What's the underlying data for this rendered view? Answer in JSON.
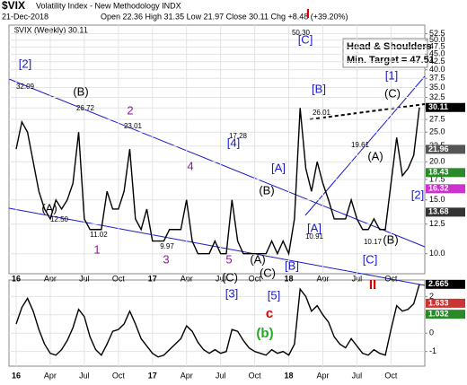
{
  "header": {
    "symbol": "$VIX",
    "title": "Volatility Index - New Methodology INDX",
    "date": "21-Dec-2018",
    "quote": "Open 22.36 High 31.35 Low 21.97 Close 30.11 Chg +8.48 (+39.20%)"
  },
  "chart_data": [
    {
      "type": "line",
      "legend": "$VIX (Weekly) 30.11",
      "log_scale": true,
      "grid": true,
      "categories": [
        "16",
        null,
        null,
        null,
        null,
        null,
        "Apr",
        null,
        null,
        null,
        null,
        null,
        "Jul",
        null,
        null,
        null,
        null,
        null,
        "Oct",
        null,
        null,
        null,
        null,
        null,
        "17",
        null,
        null,
        null,
        null,
        null,
        "Apr",
        null,
        null,
        null,
        null,
        null,
        "Jul",
        null,
        null,
        null,
        null,
        null,
        "Oct",
        null,
        null,
        null,
        null,
        null,
        "18",
        null,
        null,
        null,
        null,
        null,
        "Apr",
        null,
        null,
        null,
        null,
        null,
        "Jul",
        null,
        null,
        null,
        null,
        null,
        "Oct",
        null,
        null,
        null,
        null,
        null
      ],
      "series": [
        {
          "name": "$VIX",
          "color": "#000000",
          "values": [
            22,
            27,
            25,
            20,
            16,
            14,
            13,
            15,
            14,
            15,
            17,
            25,
            13,
            12,
            12,
            12,
            16,
            14,
            14,
            16,
            22,
            13,
            12,
            14,
            11,
            11,
            11,
            12,
            12,
            12,
            15,
            11,
            10,
            10,
            10,
            11,
            10,
            10,
            15,
            11,
            10,
            10,
            10,
            10,
            10,
            11,
            10,
            11,
            10,
            13,
            30,
            19,
            16,
            20,
            17,
            15,
            13,
            13,
            13,
            15,
            13,
            12,
            12,
            13,
            12,
            12,
            17,
            24,
            18,
            19,
            21,
            30.11
          ]
        }
      ],
      "ylim": [
        8.6,
        56
      ],
      "yticks": [
        {
          "value": 10,
          "label": "10.0"
        },
        {
          "value": 12.5,
          "label": "12.5"
        },
        {
          "value": 15,
          "label": "15.0"
        },
        {
          "value": 17.5,
          "label": "17.5"
        },
        {
          "value": 20,
          "label": "20.0"
        },
        {
          "value": 22.5,
          "label": "22.5"
        },
        {
          "value": 25,
          "label": "25.0"
        },
        {
          "value": 27.5,
          "label": "27.5"
        },
        {
          "value": 30,
          "label": "30.0"
        },
        {
          "value": 32.5,
          "label": "32.5"
        },
        {
          "value": 35,
          "label": "35.0"
        },
        {
          "value": 37.5,
          "label": "37.5"
        },
        {
          "value": 40,
          "label": "40.0"
        },
        {
          "value": 42.5,
          "label": "42.5"
        },
        {
          "value": 45,
          "label": "45.0"
        },
        {
          "value": 47.5,
          "label": "47.5"
        },
        {
          "value": 50,
          "label": "50.0"
        },
        {
          "value": 52.5,
          "label": "52.5"
        }
      ],
      "price_tags": [
        {
          "value": 30.11,
          "color": "#000000"
        },
        {
          "value": 21.96,
          "color": "#555555"
        },
        {
          "value": 18.43,
          "color": "#2a8a2a"
        },
        {
          "value": 16.32,
          "color": "#cc33cc"
        },
        {
          "value": 13.68,
          "color": "#333333"
        }
      ],
      "pattern_box": [
        "Head & Shoulders",
        "Min. Target = 47.51"
      ],
      "peak_labels": [
        "32.09",
        "26.72",
        "23.01",
        "12.50",
        "11.02",
        "9.97",
        "17.28",
        "50.30",
        "26.01",
        "19.61",
        "10.91",
        "10.17"
      ],
      "annotations": [
        {
          "text": "[2]",
          "color": "#1a1acc"
        },
        {
          "text": "(B)",
          "color": "#000000"
        },
        {
          "text": "2",
          "color": "#8a1a9a"
        },
        {
          "text": "(A)",
          "color": "#000000"
        },
        {
          "text": "1",
          "color": "#8a1a9a"
        },
        {
          "text": "3",
          "color": "#8a1a9a"
        },
        {
          "text": "4",
          "color": "#8a1a9a"
        },
        {
          "text": "[4]",
          "color": "#1a1acc"
        },
        {
          "text": "5",
          "color": "#8a1a9a"
        },
        {
          "text": "(B)",
          "color": "#000000"
        },
        {
          "text": "(A)",
          "color": "#000000"
        },
        {
          "text": "(C)",
          "color": "#000000"
        },
        {
          "text": "(C)",
          "color": "#000000"
        },
        {
          "text": "[3]",
          "color": "#1a1acc"
        },
        {
          "text": "[5]",
          "color": "#1a1acc"
        },
        {
          "text": "[B]",
          "color": "#1a1acc"
        },
        {
          "text": "[A]",
          "color": "#1a1acc"
        },
        {
          "text": "[A]",
          "color": "#1a1acc"
        },
        {
          "text": "[C]",
          "color": "#1a1acc"
        },
        {
          "text": "I",
          "color": "#dd0000"
        },
        {
          "text": "[B]",
          "color": "#1a1acc"
        },
        {
          "text": "[1]",
          "color": "#1a1acc"
        },
        {
          "text": "(C)",
          "color": "#000000"
        },
        {
          "text": "(A)",
          "color": "#000000"
        },
        {
          "text": "[2]",
          "color": "#1a1acc"
        },
        {
          "text": "(B)",
          "color": "#000000"
        },
        {
          "text": "[C]",
          "color": "#1a1acc"
        },
        {
          "text": "II",
          "color": "#dd0000"
        },
        {
          "text": "c",
          "color": "#dd0000"
        },
        {
          "text": "(b)",
          "color": "#22aa22"
        }
      ]
    },
    {
      "type": "line",
      "grid": true,
      "series": [
        {
          "name": "momentum",
          "color": "#000000",
          "values": [
            0.5,
            1.4,
            1.9,
            1.2,
            0.2,
            -0.6,
            -1.1,
            -1.2,
            -0.9,
            -0.4,
            0.3,
            1.3,
            0.9,
            -0.2,
            -0.9,
            -1.2,
            -0.6,
            0.1,
            0.2,
            0.5,
            1.2,
            0.5,
            -0.3,
            -0.7,
            -1.1,
            -1.3,
            -1.2,
            -0.9,
            -0.6,
            -0.3,
            0.4,
            0.1,
            -0.5,
            -0.9,
            -1.1,
            -0.9,
            -1.1,
            -1.0,
            0.2,
            0.1,
            -0.4,
            -0.8,
            -1.0,
            -1.1,
            -1.2,
            -0.9,
            -1.1,
            -1.0,
            -1.2,
            -0.6,
            2.4,
            2.0,
            1.2,
            1.5,
            1.0,
            0.6,
            -0.2,
            -0.6,
            -0.8,
            -0.3,
            -0.7,
            -1.1,
            -1.2,
            -0.9,
            -1.1,
            -1.2,
            0.2,
            1.5,
            1.2,
            1.3,
            1.6,
            2.665
          ]
        }
      ],
      "ylim": [
        -1.8,
        2.9
      ],
      "yticks": [
        -1,
        0,
        1,
        2
      ],
      "value_tags": [
        {
          "value": 2.665,
          "label": "2.665",
          "color": "#000000"
        },
        {
          "value": 1.633,
          "label": "1.633",
          "color": "#cc3333"
        },
        {
          "value": 1.032,
          "label": "1.032",
          "color": "#2a8a2a"
        }
      ]
    }
  ]
}
